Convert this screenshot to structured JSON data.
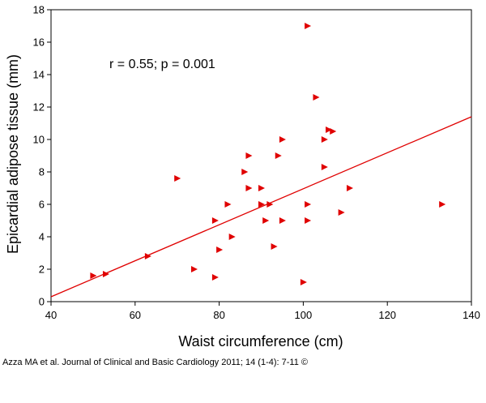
{
  "chart_data": {
    "type": "scatter",
    "xlabel": "Waist circumference (cm)",
    "ylabel": "Epicardial adipose tissue (mm)",
    "xlim": [
      40,
      140
    ],
    "ylim": [
      0,
      18
    ],
    "xticks": [
      40,
      60,
      80,
      100,
      120,
      140
    ],
    "yticks": [
      0,
      2,
      4,
      6,
      8,
      10,
      12,
      14,
      16,
      18
    ],
    "annotation": "r = 0.55; p = 0.001",
    "marker_color": "#e00000",
    "line_color": "#e00000",
    "regression_line": {
      "x": [
        40,
        140
      ],
      "y": [
        0.3,
        11.4
      ]
    },
    "points": [
      {
        "x": 50,
        "y": 1.6
      },
      {
        "x": 53,
        "y": 1.7
      },
      {
        "x": 63,
        "y": 2.8
      },
      {
        "x": 70,
        "y": 7.6
      },
      {
        "x": 74,
        "y": 2.0
      },
      {
        "x": 79,
        "y": 1.5
      },
      {
        "x": 79,
        "y": 5.0
      },
      {
        "x": 80,
        "y": 3.2
      },
      {
        "x": 82,
        "y": 6.0
      },
      {
        "x": 83,
        "y": 4.0
      },
      {
        "x": 86,
        "y": 8.0
      },
      {
        "x": 87,
        "y": 9.0
      },
      {
        "x": 87,
        "y": 7.0
      },
      {
        "x": 90,
        "y": 7.0
      },
      {
        "x": 90,
        "y": 6.0
      },
      {
        "x": 91,
        "y": 5.0
      },
      {
        "x": 92,
        "y": 6.0
      },
      {
        "x": 93,
        "y": 3.4
      },
      {
        "x": 94,
        "y": 9.0
      },
      {
        "x": 95,
        "y": 10.0
      },
      {
        "x": 95,
        "y": 5.0
      },
      {
        "x": 100,
        "y": 1.2
      },
      {
        "x": 101,
        "y": 17.0
      },
      {
        "x": 101,
        "y": 6.0
      },
      {
        "x": 101,
        "y": 5.0
      },
      {
        "x": 103,
        "y": 12.6
      },
      {
        "x": 105,
        "y": 10.0
      },
      {
        "x": 105,
        "y": 8.3
      },
      {
        "x": 106,
        "y": 10.6
      },
      {
        "x": 107,
        "y": 10.5
      },
      {
        "x": 109,
        "y": 5.5
      },
      {
        "x": 111,
        "y": 7.0
      },
      {
        "x": 133,
        "y": 6.0
      }
    ]
  },
  "caption": "Azza MA et al. Journal of Clinical and Basic Cardiology 2011; 14 (1-4): 7-11 ©"
}
